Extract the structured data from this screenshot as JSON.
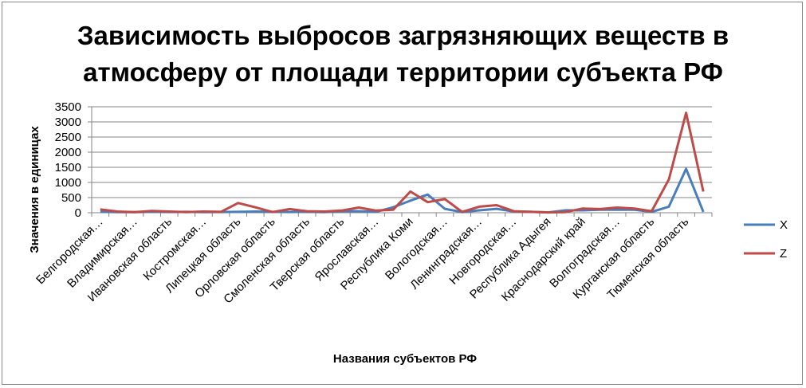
{
  "chart_data": {
    "type": "line",
    "title": "Зависимость выбросов загрязняющих веществ в атмосферу от площади территории субъекта РФ",
    "xlabel": "Названия субъектов РФ",
    "ylabel": "Значения в единицах",
    "ylim": [
      0,
      3500
    ],
    "yticks": [
      "0",
      "500",
      "1000",
      "1500",
      "2000",
      "2500",
      "3000",
      "3500"
    ],
    "grid": true,
    "legend_position": "right",
    "x_tick_labels": [
      "Белгородская…",
      "Владимирская…",
      "Ивановская область",
      "Костромская…",
      "Липецкая область",
      "Орловская область",
      "Смоленская область",
      "Тверская область",
      "Ярославская…",
      "Республика Коми",
      "Вологодская…",
      "Ленинградская…",
      "Новгородская…",
      "Республика Адыгея",
      "Краснодарский край",
      "Волгоградская…",
      "Курганская область",
      "Тюменская область"
    ],
    "series": [
      {
        "name": "X",
        "color": "#4a7ebb",
        "values": [
          30,
          20,
          20,
          30,
          25,
          30,
          20,
          25,
          30,
          40,
          30,
          25,
          30,
          20,
          50,
          50,
          30,
          180,
          400,
          600,
          130,
          20,
          80,
          130,
          40,
          30,
          10,
          80,
          80,
          100,
          100,
          100,
          30,
          200,
          1450,
          30
        ]
      },
      {
        "name": "Z",
        "color": "#be4b48",
        "values": [
          110,
          40,
          20,
          60,
          40,
          20,
          40,
          30,
          320,
          180,
          20,
          120,
          50,
          40,
          70,
          170,
          70,
          100,
          700,
          350,
          450,
          30,
          200,
          250,
          50,
          30,
          10,
          20,
          140,
          120,
          170,
          140,
          50,
          1100,
          3300,
          700
        ]
      }
    ]
  }
}
